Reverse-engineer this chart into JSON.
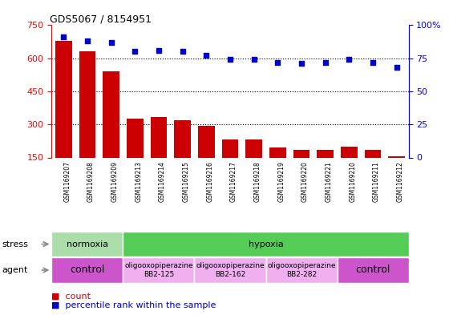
{
  "title": "GDS5067 / 8154951",
  "samples": [
    "GSM1169207",
    "GSM1169208",
    "GSM1169209",
    "GSM1169213",
    "GSM1169214",
    "GSM1169215",
    "GSM1169216",
    "GSM1169217",
    "GSM1169218",
    "GSM1169219",
    "GSM1169220",
    "GSM1169221",
    "GSM1169210",
    "GSM1169211",
    "GSM1169212"
  ],
  "counts": [
    680,
    630,
    540,
    325,
    335,
    320,
    295,
    230,
    230,
    195,
    185,
    185,
    200,
    185,
    155
  ],
  "percentiles": [
    91,
    88,
    87,
    80,
    81,
    80,
    77,
    74,
    74,
    72,
    71,
    72,
    74,
    72,
    68
  ],
  "bar_color": "#cc0000",
  "dot_color": "#0000cc",
  "ylim_left": [
    150,
    750
  ],
  "ylim_right": [
    0,
    100
  ],
  "yticks_left": [
    150,
    300,
    450,
    600,
    750
  ],
  "yticks_right": [
    0,
    25,
    50,
    75,
    100
  ],
  "grid_values": [
    300,
    450,
    600
  ],
  "stress_normoxia_color": "#aaddaa",
  "stress_hypoxia_color": "#55cc55",
  "agent_control_color": "#cc55cc",
  "agent_oligo_color": "#f0b0f0",
  "xtick_bg_color": "#cccccc",
  "background_color": "#ffffff"
}
